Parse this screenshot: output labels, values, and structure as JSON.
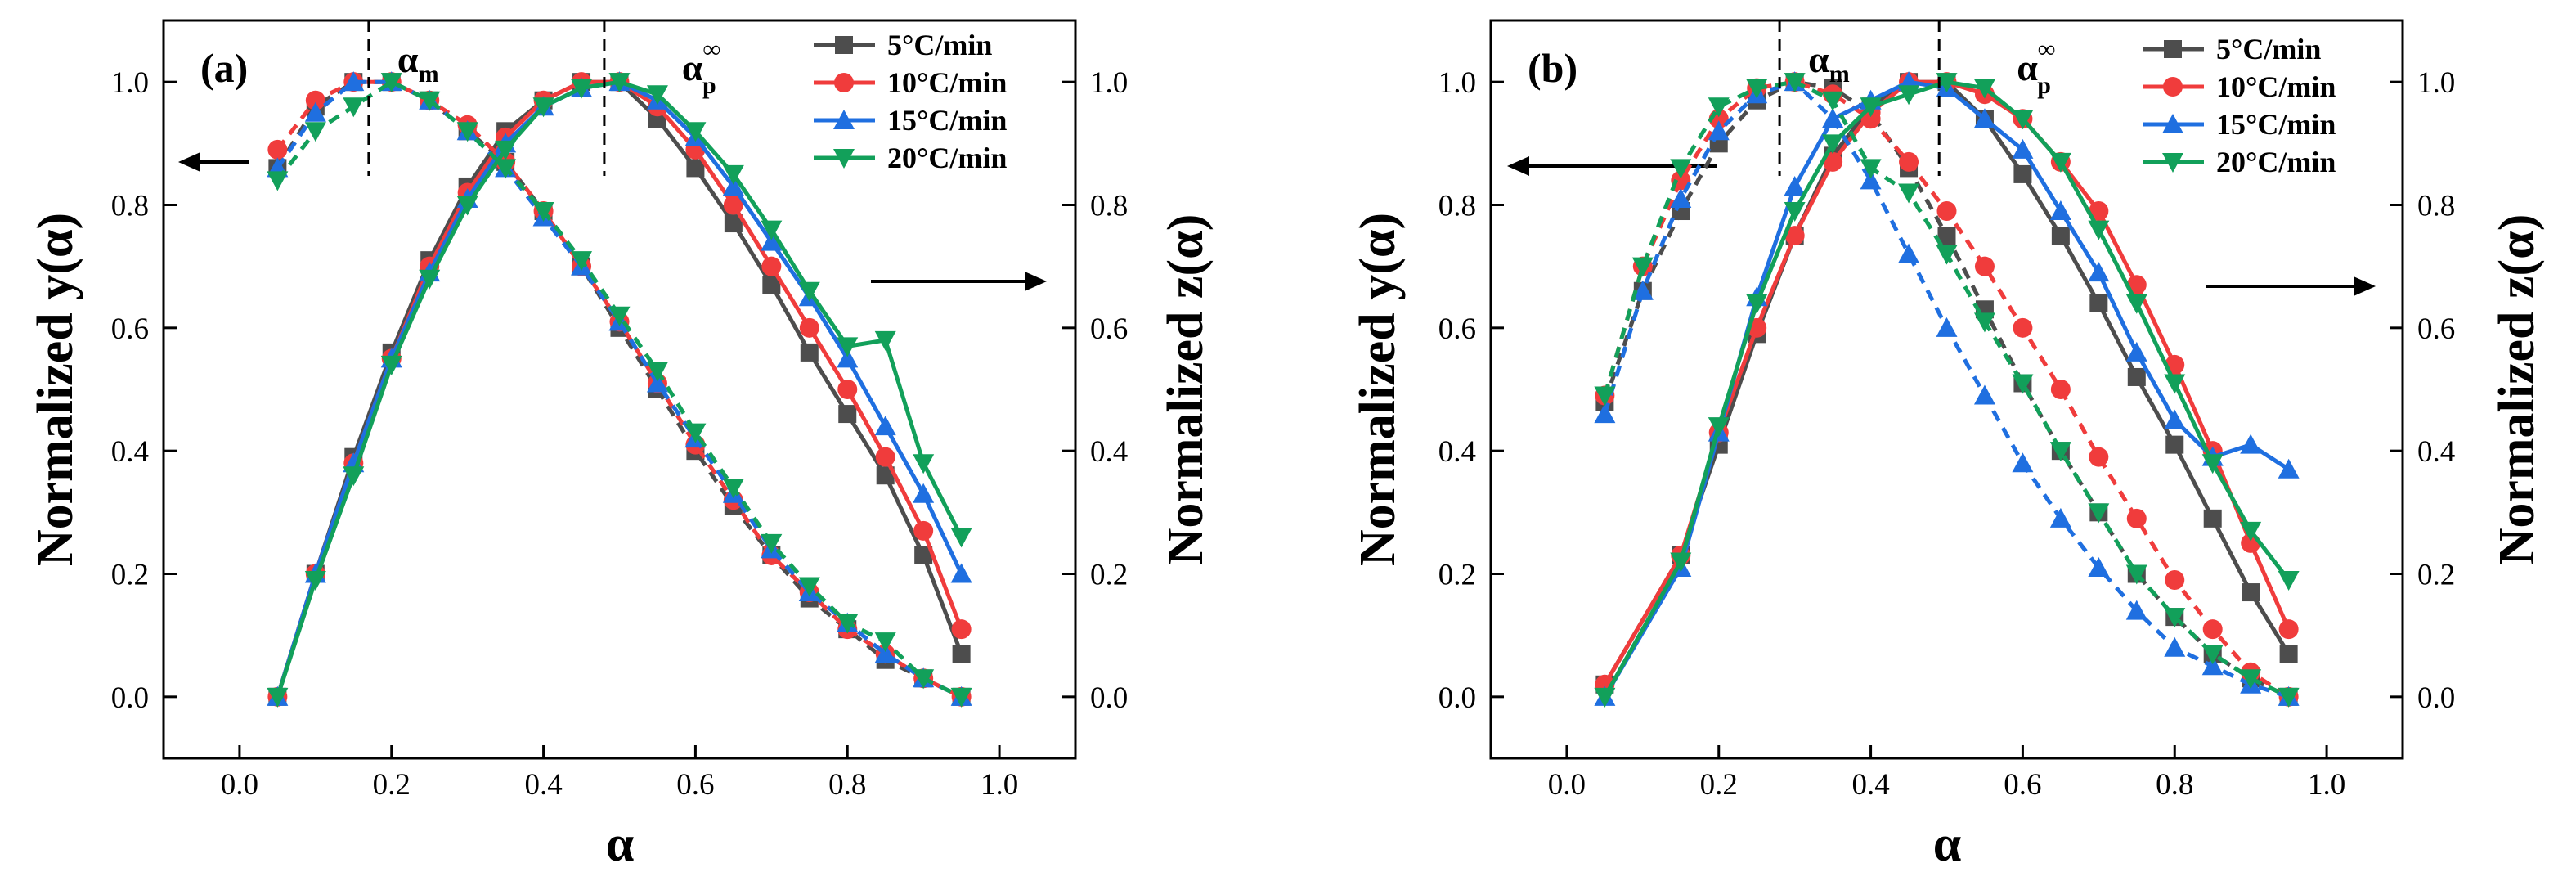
{
  "chart_data": [
    {
      "type": "line",
      "panel_label": "(a)",
      "xlabel": "α",
      "ylabel_left": "Normalized y(α)",
      "ylabel_right": "Normalized z(α)",
      "xlim": [
        -0.1,
        1.1
      ],
      "ylim": [
        -0.1,
        1.1
      ],
      "xticks": [
        "0.0",
        "0.2",
        "0.4",
        "0.6",
        "0.8",
        "1.0"
      ],
      "xtick_values": [
        0.0,
        0.2,
        0.4,
        0.6,
        0.8,
        1.0
      ],
      "yticks": [
        "0.0",
        "0.2",
        "0.4",
        "0.6",
        "0.8",
        "1.0"
      ],
      "ytick_values": [
        0.0,
        0.2,
        0.4,
        0.6,
        0.8,
        1.0
      ],
      "annotations": {
        "alpha_m": {
          "label": "α",
          "sub": "m",
          "x": 0.17
        },
        "alpha_p": {
          "label": "α",
          "sub": "p",
          "sup": "∞",
          "x": 0.48
        }
      },
      "legend": [
        "5°C/min",
        "10°C/min",
        "15°C/min",
        "20°C/min"
      ],
      "series": [
        {
          "name": "5°C/min",
          "color": "#4d4d4d",
          "marker": "square",
          "y_alpha": {
            "x": [
              0.05,
              0.1,
              0.15,
              0.2,
              0.25,
              0.3,
              0.35,
              0.4,
              0.45,
              0.5,
              0.55,
              0.6,
              0.65,
              0.7,
              0.75,
              0.8,
              0.85,
              0.9,
              0.95
            ],
            "y": [
              0.86,
              0.96,
              1.0,
              1.0,
              0.97,
              0.92,
              0.87,
              0.79,
              0.7,
              0.6,
              0.5,
              0.4,
              0.31,
              0.23,
              0.16,
              0.11,
              0.06,
              0.03,
              0.0
            ]
          },
          "z_alpha": {
            "x": [
              0.05,
              0.1,
              0.15,
              0.2,
              0.25,
              0.3,
              0.35,
              0.4,
              0.45,
              0.5,
              0.55,
              0.6,
              0.65,
              0.7,
              0.75,
              0.8,
              0.85,
              0.9,
              0.95
            ],
            "y": [
              0.0,
              0.2,
              0.39,
              0.56,
              0.71,
              0.83,
              0.92,
              0.97,
              1.0,
              1.0,
              0.94,
              0.86,
              0.77,
              0.67,
              0.56,
              0.46,
              0.36,
              0.23,
              0.07
            ]
          }
        },
        {
          "name": "10°C/min",
          "color": "#f03c3c",
          "marker": "circle",
          "y_alpha": {
            "x": [
              0.05,
              0.1,
              0.15,
              0.2,
              0.25,
              0.3,
              0.35,
              0.4,
              0.45,
              0.5,
              0.55,
              0.6,
              0.65,
              0.7,
              0.75,
              0.8,
              0.85,
              0.9,
              0.95
            ],
            "y": [
              0.89,
              0.97,
              1.0,
              1.0,
              0.97,
              0.93,
              0.87,
              0.79,
              0.7,
              0.61,
              0.51,
              0.41,
              0.32,
              0.23,
              0.17,
              0.11,
              0.07,
              0.03,
              0.0
            ]
          },
          "z_alpha": {
            "x": [
              0.05,
              0.1,
              0.15,
              0.2,
              0.25,
              0.3,
              0.35,
              0.4,
              0.45,
              0.5,
              0.55,
              0.6,
              0.65,
              0.7,
              0.75,
              0.8,
              0.85,
              0.9,
              0.95
            ],
            "y": [
              0.0,
              0.2,
              0.38,
              0.55,
              0.7,
              0.82,
              0.91,
              0.97,
              1.0,
              1.0,
              0.96,
              0.89,
              0.8,
              0.7,
              0.6,
              0.5,
              0.39,
              0.27,
              0.11
            ]
          }
        },
        {
          "name": "15°C/min",
          "color": "#1f6fe0",
          "marker": "triangle-up",
          "y_alpha": {
            "x": [
              0.05,
              0.1,
              0.15,
              0.2,
              0.25,
              0.3,
              0.35,
              0.4,
              0.45,
              0.5,
              0.55,
              0.6,
              0.65,
              0.7,
              0.75,
              0.8,
              0.85,
              0.9,
              0.95
            ],
            "y": [
              0.86,
              0.95,
              1.0,
              1.0,
              0.97,
              0.92,
              0.86,
              0.78,
              0.7,
              0.61,
              0.51,
              0.42,
              0.33,
              0.24,
              0.17,
              0.12,
              0.07,
              0.03,
              0.0
            ]
          },
          "z_alpha": {
            "x": [
              0.05,
              0.1,
              0.15,
              0.2,
              0.25,
              0.3,
              0.35,
              0.4,
              0.45,
              0.5,
              0.55,
              0.6,
              0.65,
              0.7,
              0.75,
              0.8,
              0.85,
              0.9,
              0.95
            ],
            "y": [
              0.0,
              0.2,
              0.38,
              0.55,
              0.69,
              0.81,
              0.9,
              0.96,
              0.99,
              1.0,
              0.97,
              0.91,
              0.83,
              0.74,
              0.65,
              0.55,
              0.44,
              0.33,
              0.2
            ]
          }
        },
        {
          "name": "20°C/min",
          "color": "#12a05a",
          "marker": "triangle-down",
          "y_alpha": {
            "x": [
              0.05,
              0.1,
              0.15,
              0.2,
              0.25,
              0.3,
              0.35,
              0.4,
              0.45,
              0.5,
              0.55,
              0.6,
              0.65,
              0.7,
              0.75,
              0.8,
              0.85,
              0.9,
              0.95
            ],
            "y": [
              0.84,
              0.92,
              0.96,
              1.0,
              0.97,
              0.92,
              0.86,
              0.79,
              0.71,
              0.62,
              0.53,
              0.43,
              0.34,
              0.25,
              0.18,
              0.12,
              0.09,
              0.03,
              0.0
            ]
          },
          "z_alpha": {
            "x": [
              0.05,
              0.1,
              0.15,
              0.2,
              0.25,
              0.3,
              0.35,
              0.4,
              0.45,
              0.5,
              0.55,
              0.6,
              0.65,
              0.7,
              0.75,
              0.8,
              0.85,
              0.9,
              0.95
            ],
            "y": [
              0.0,
              0.19,
              0.36,
              0.54,
              0.68,
              0.8,
              0.89,
              0.96,
              0.99,
              1.0,
              0.98,
              0.92,
              0.85,
              0.76,
              0.66,
              0.57,
              0.58,
              0.38,
              0.26
            ]
          }
        }
      ]
    },
    {
      "type": "line",
      "panel_label": "(b)",
      "xlabel": "α",
      "ylabel_left": "Normalized y(α)",
      "ylabel_right": "Normalized z(α)",
      "xlim": [
        -0.1,
        1.1
      ],
      "ylim": [
        -0.1,
        1.1
      ],
      "xticks": [
        "0.0",
        "0.2",
        "0.4",
        "0.6",
        "0.8",
        "1.0"
      ],
      "xtick_values": [
        0.0,
        0.2,
        0.4,
        0.6,
        0.8,
        1.0
      ],
      "yticks": [
        "0.0",
        "0.2",
        "0.4",
        "0.6",
        "0.8",
        "1.0"
      ],
      "ytick_values": [
        0.0,
        0.2,
        0.4,
        0.6,
        0.8,
        1.0
      ],
      "annotations": {
        "alpha_m": {
          "label": "α",
          "sub": "m",
          "x": 0.28
        },
        "alpha_p": {
          "label": "α",
          "sub": "p",
          "sup": "∞",
          "x": 0.49
        }
      },
      "legend": [
        "5°C/min",
        "10°C/min",
        "15°C/min",
        "20°C/min"
      ],
      "series": [
        {
          "name": "5°C/min",
          "color": "#4d4d4d",
          "marker": "square",
          "y_alpha": {
            "x": [
              0.05,
              0.1,
              0.15,
              0.2,
              0.25,
              0.3,
              0.35,
              0.4,
              0.45,
              0.5,
              0.55,
              0.6,
              0.65,
              0.7,
              0.75,
              0.8,
              0.85,
              0.9,
              0.95
            ],
            "y": [
              0.48,
              0.66,
              0.79,
              0.9,
              0.97,
              1.0,
              0.99,
              0.95,
              0.86,
              0.75,
              0.63,
              0.51,
              0.4,
              0.3,
              0.2,
              0.13,
              0.07,
              0.03,
              0.0
            ]
          },
          "z_alpha": {
            "x": [
              0.05,
              0.15,
              0.2,
              0.25,
              0.3,
              0.35,
              0.4,
              0.45,
              0.5,
              0.55,
              0.6,
              0.65,
              0.7,
              0.75,
              0.8,
              0.85,
              0.9,
              0.95
            ],
            "y": [
              0.02,
              0.23,
              0.41,
              0.59,
              0.75,
              0.88,
              0.96,
              1.0,
              1.0,
              0.94,
              0.85,
              0.75,
              0.64,
              0.52,
              0.41,
              0.29,
              0.17,
              0.07
            ]
          }
        },
        {
          "name": "10°C/min",
          "color": "#f03c3c",
          "marker": "circle",
          "y_alpha": {
            "x": [
              0.05,
              0.1,
              0.15,
              0.2,
              0.25,
              0.3,
              0.35,
              0.4,
              0.45,
              0.5,
              0.55,
              0.6,
              0.65,
              0.7,
              0.75,
              0.8,
              0.85,
              0.9,
              0.95
            ],
            "y": [
              0.49,
              0.7,
              0.84,
              0.94,
              0.99,
              1.0,
              0.98,
              0.94,
              0.87,
              0.79,
              0.7,
              0.6,
              0.5,
              0.39,
              0.29,
              0.19,
              0.11,
              0.04,
              0.0
            ]
          },
          "z_alpha": {
            "x": [
              0.05,
              0.15,
              0.2,
              0.25,
              0.3,
              0.35,
              0.4,
              0.45,
              0.5,
              0.55,
              0.6,
              0.65,
              0.7,
              0.75,
              0.8,
              0.85,
              0.9,
              0.95
            ],
            "y": [
              0.02,
              0.23,
              0.43,
              0.6,
              0.75,
              0.87,
              0.95,
              1.0,
              1.0,
              0.98,
              0.94,
              0.87,
              0.79,
              0.67,
              0.54,
              0.4,
              0.25,
              0.11
            ]
          }
        },
        {
          "name": "15°C/min",
          "color": "#1f6fe0",
          "marker": "triangle-up",
          "y_alpha": {
            "x": [
              0.05,
              0.1,
              0.15,
              0.2,
              0.25,
              0.3,
              0.35,
              0.4,
              0.45,
              0.5,
              0.55,
              0.6,
              0.65,
              0.7,
              0.75,
              0.8,
              0.85,
              0.9,
              0.95
            ],
            "y": [
              0.46,
              0.66,
              0.81,
              0.92,
              0.98,
              1.0,
              0.94,
              0.84,
              0.72,
              0.6,
              0.49,
              0.38,
              0.29,
              0.21,
              0.14,
              0.08,
              0.05,
              0.02,
              0.0
            ]
          },
          "z_alpha": {
            "x": [
              0.05,
              0.15,
              0.2,
              0.25,
              0.3,
              0.35,
              0.4,
              0.45,
              0.5,
              0.55,
              0.6,
              0.65,
              0.7,
              0.75,
              0.8,
              0.85,
              0.9,
              0.95
            ],
            "y": [
              0.0,
              0.21,
              0.43,
              0.65,
              0.83,
              0.94,
              0.97,
              1.0,
              0.99,
              0.94,
              0.89,
              0.79,
              0.69,
              0.56,
              0.45,
              0.39,
              0.41,
              0.37
            ]
          }
        },
        {
          "name": "20°C/min",
          "color": "#12a05a",
          "marker": "triangle-down",
          "y_alpha": {
            "x": [
              0.05,
              0.1,
              0.15,
              0.2,
              0.25,
              0.3,
              0.35,
              0.4,
              0.45,
              0.5,
              0.55,
              0.6,
              0.65,
              0.7,
              0.75,
              0.8,
              0.85,
              0.9,
              0.95
            ],
            "y": [
              0.49,
              0.7,
              0.86,
              0.96,
              0.99,
              1.0,
              0.97,
              0.86,
              0.82,
              0.72,
              0.61,
              0.51,
              0.4,
              0.3,
              0.2,
              0.13,
              0.07,
              0.03,
              0.0
            ]
          },
          "z_alpha": {
            "x": [
              0.05,
              0.15,
              0.2,
              0.25,
              0.3,
              0.35,
              0.4,
              0.45,
              0.5,
              0.55,
              0.6,
              0.65,
              0.7,
              0.75,
              0.8,
              0.85,
              0.9,
              0.95
            ],
            "y": [
              0.0,
              0.22,
              0.44,
              0.64,
              0.79,
              0.9,
              0.96,
              0.98,
              1.0,
              0.99,
              0.94,
              0.87,
              0.76,
              0.64,
              0.51,
              0.38,
              0.27,
              0.19
            ]
          }
        }
      ]
    }
  ]
}
